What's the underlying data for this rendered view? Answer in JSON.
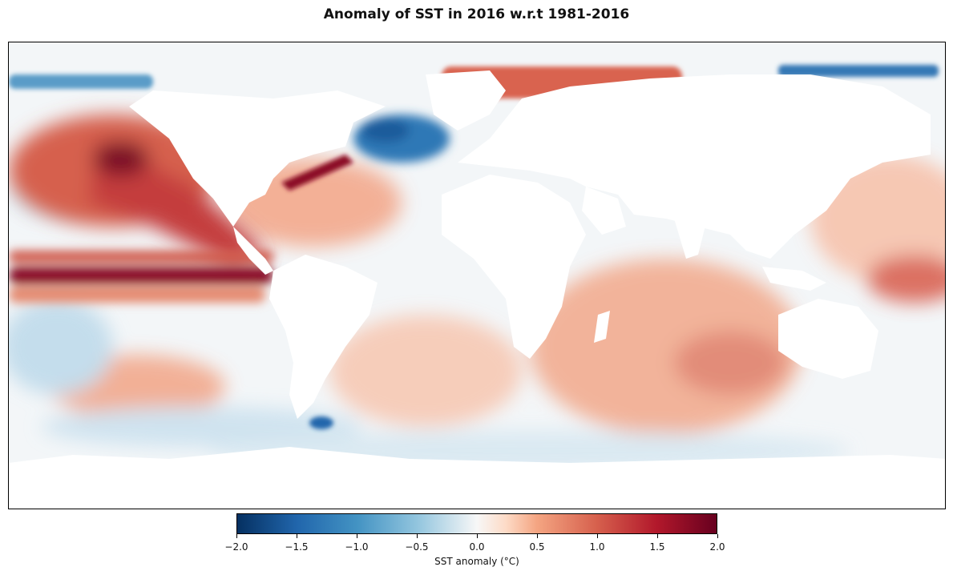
{
  "title": "Anomaly of SST in 2016 w.r.t 1981-2016",
  "colorbar": {
    "label": "SST anomaly (°C)",
    "range": [
      -2.0,
      2.0
    ],
    "ticks": [
      {
        "value": -2.0,
        "label": "−2.0"
      },
      {
        "value": -1.5,
        "label": "−1.5"
      },
      {
        "value": -1.0,
        "label": "−1.0"
      },
      {
        "value": -0.5,
        "label": "−0.5"
      },
      {
        "value": 0.0,
        "label": "0.0"
      },
      {
        "value": 0.5,
        "label": "0.5"
      },
      {
        "value": 1.0,
        "label": "1.0"
      },
      {
        "value": 1.5,
        "label": "1.5"
      },
      {
        "value": 2.0,
        "label": "2.0"
      }
    ],
    "colormap": "RdBu_r",
    "colors": {
      "min": "#053061",
      "neg": "#2166ac",
      "zero": "#f7f7f7",
      "pos": "#d6604d",
      "max": "#67001f"
    }
  },
  "map": {
    "projection": "equirectangular",
    "land_color": "#ffffff",
    "ocean_base_color": "#f3f6f8"
  }
}
